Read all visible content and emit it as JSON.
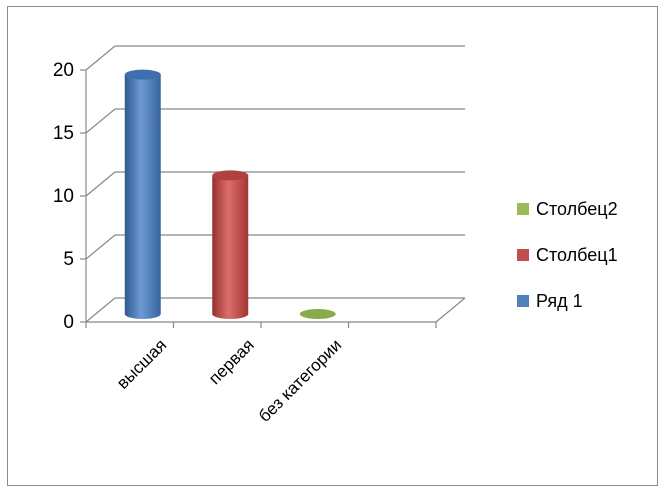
{
  "chart_data": {
    "type": "bar",
    "title": "",
    "xlabel": "",
    "ylabel": "",
    "categories": [
      "высшая",
      "первая",
      "без категории"
    ],
    "ylim": [
      0,
      20
    ],
    "yticks": [
      0,
      5,
      10,
      15,
      20
    ],
    "grid": true,
    "legend_position": "right",
    "series": [
      {
        "name": "Ряд 1",
        "color": "#4f81bd",
        "values": [
          19,
          null,
          null
        ]
      },
      {
        "name": "Столбец1",
        "color": "#c0504d",
        "values": [
          null,
          11,
          null
        ]
      },
      {
        "name": "Столбец2",
        "color": "#9bbb59",
        "values": [
          null,
          null,
          0
        ]
      }
    ]
  }
}
